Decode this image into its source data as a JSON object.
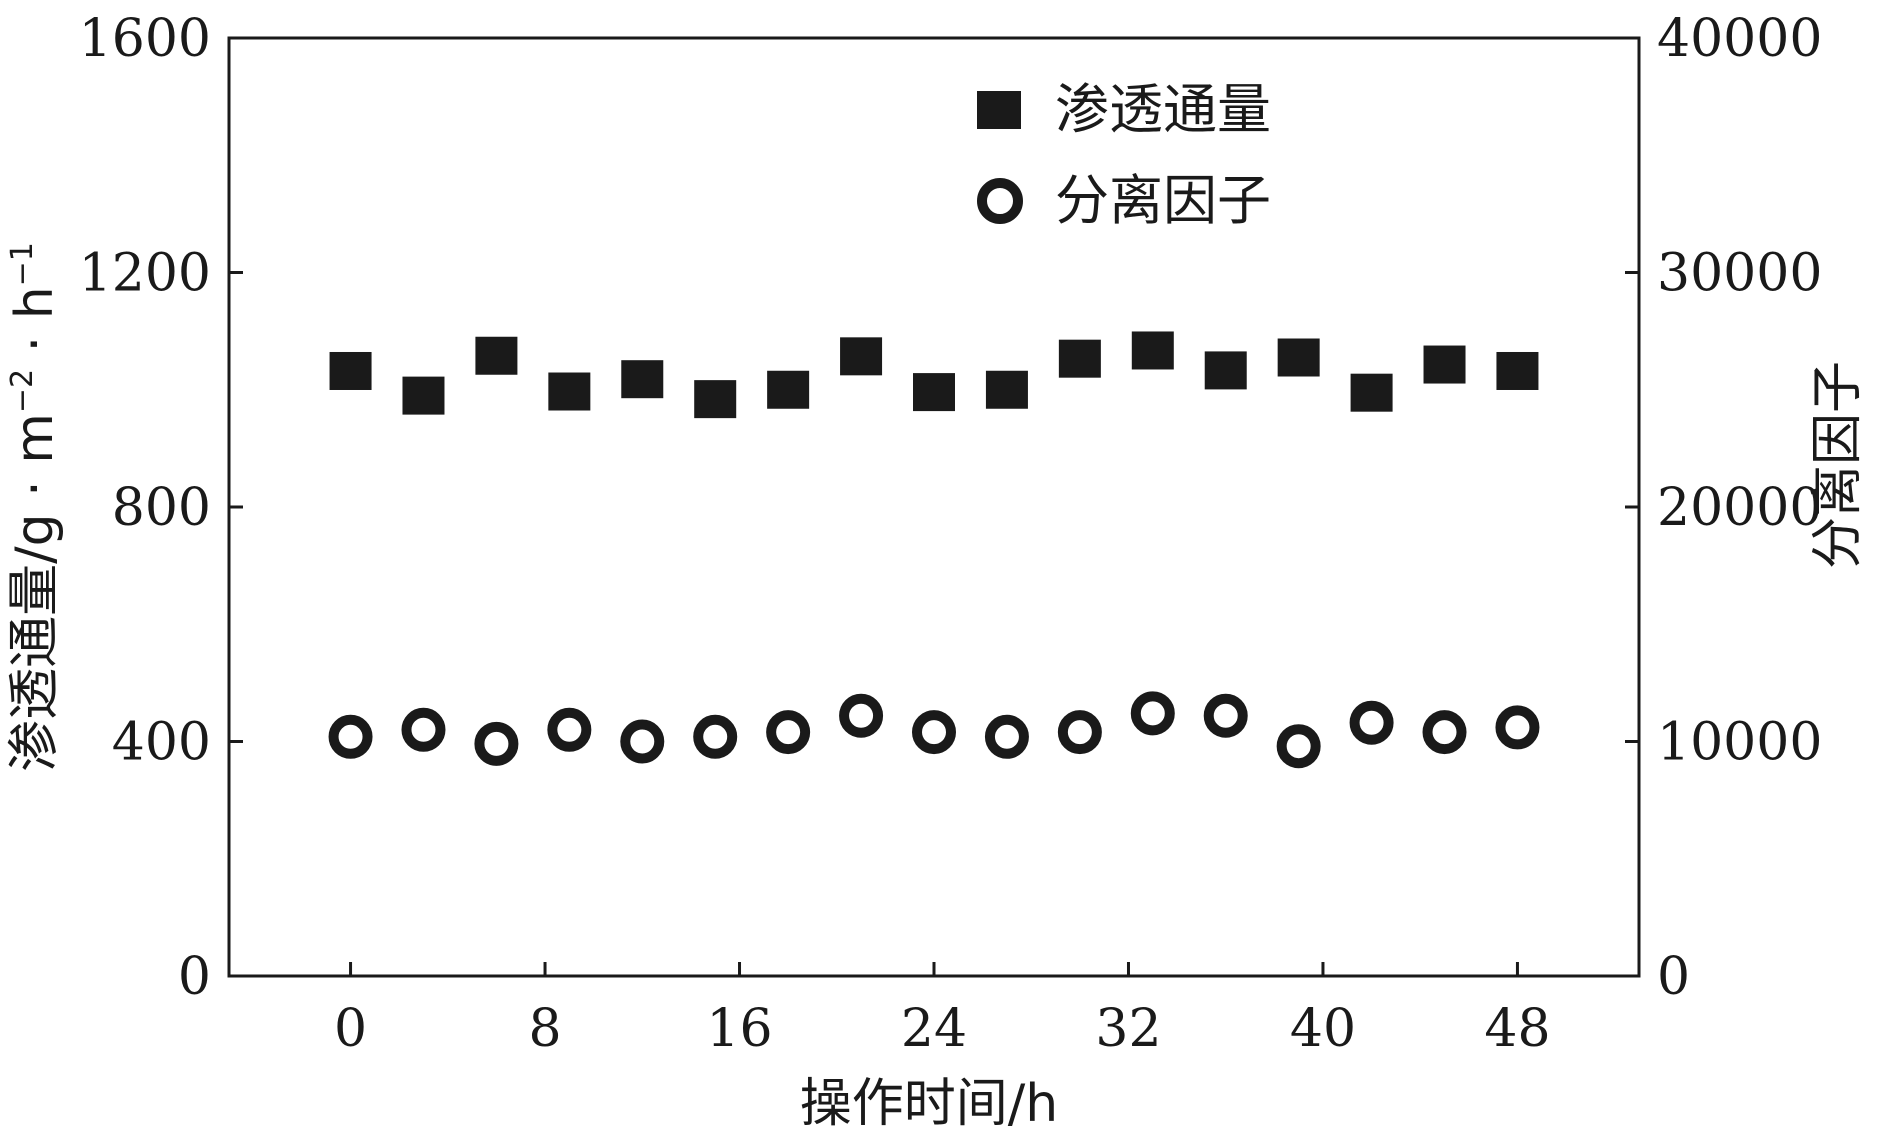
{
  "chart_data": {
    "type": "scatter",
    "x": [
      0,
      3,
      6,
      9,
      12,
      15,
      18,
      21,
      24,
      27,
      30,
      33,
      36,
      39,
      42,
      45,
      48
    ],
    "xlabel": "操作时间/h",
    "xticks": [
      "0",
      "8",
      "16",
      "24",
      "32",
      "40",
      "48"
    ],
    "xtick_values": [
      0,
      8,
      16,
      24,
      32,
      40,
      48
    ],
    "xlim": [
      -5,
      53
    ],
    "left_axis": {
      "label_main": "渗透通量/g · m",
      "label_sup1": "−2",
      "label_mid": " · h",
      "label_sup2": "−1",
      "ticks": [
        "0",
        "400",
        "800",
        "1200",
        "1600"
      ],
      "tick_values": [
        0,
        400,
        800,
        1200,
        1600
      ],
      "ylim": [
        0,
        1600
      ]
    },
    "right_axis": {
      "label": "分离因子",
      "ticks": [
        "0",
        "10000",
        "20000",
        "30000",
        "40000"
      ],
      "tick_values": [
        0,
        10000,
        20000,
        30000,
        40000
      ],
      "ylim": [
        0,
        40000
      ]
    },
    "series": [
      {
        "name": "渗透通量",
        "axis": "left",
        "marker": "square",
        "color": "#1a1a1a",
        "values": [
          1032,
          990,
          1058,
          997,
          1018,
          984,
          1000,
          1057,
          996,
          1000,
          1053,
          1067,
          1033,
          1055,
          995,
          1043,
          1032
        ]
      },
      {
        "name": "分离因子",
        "axis": "right",
        "marker": "ring",
        "color": "#1a1a1a",
        "values": [
          10200,
          10500,
          9900,
          10500,
          10000,
          10200,
          10400,
          11100,
          10400,
          10200,
          10400,
          11200,
          11100,
          9800,
          10800,
          10400,
          10600
        ]
      }
    ],
    "legend_position": "top-center",
    "grid": false
  }
}
